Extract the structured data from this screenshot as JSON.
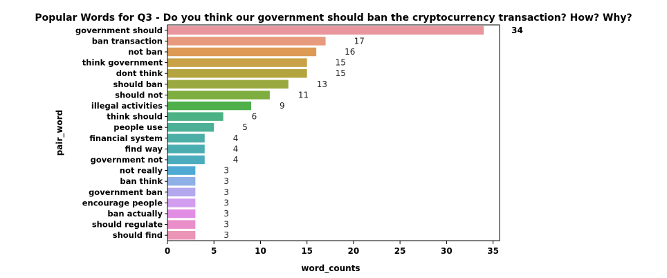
{
  "chart_data": {
    "type": "bar",
    "orientation": "horizontal",
    "title": "Popular Words for Q3 - Do you think our government should ban the cryptocurrency transaction? How? Why?",
    "xlabel": "word_counts",
    "ylabel": "pair_word",
    "xlim": [
      0,
      35.7
    ],
    "xticks": [
      0,
      5,
      10,
      15,
      20,
      25,
      30,
      35
    ],
    "categories": [
      "government should",
      "ban transaction",
      "not ban",
      "think government",
      "dont think",
      "should ban",
      "should not",
      "illegal activities",
      "think should",
      "people use",
      "financial system",
      "find way",
      "government not",
      "not really",
      "ban think",
      "government ban",
      "encourage people",
      "ban actually",
      "should regulate",
      "should find"
    ],
    "values": [
      34,
      17,
      16,
      15,
      15,
      13,
      11,
      9,
      6,
      5,
      4,
      4,
      4,
      3,
      3,
      3,
      3,
      3,
      3,
      3
    ],
    "colors": [
      "#e8959d",
      "#e89a7e",
      "#dd9a55",
      "#c9a247",
      "#b3a43f",
      "#9aa93f",
      "#7eae3f",
      "#4fb04b",
      "#4cb185",
      "#4cb096",
      "#4cafa6",
      "#4aaeb0",
      "#4bacbd",
      "#4faad3",
      "#8fb0e7",
      "#b3a7ee",
      "#d29def",
      "#e18de3",
      "#ea8ec9",
      "#ea95b5"
    ],
    "grid": false,
    "legend": "none"
  }
}
